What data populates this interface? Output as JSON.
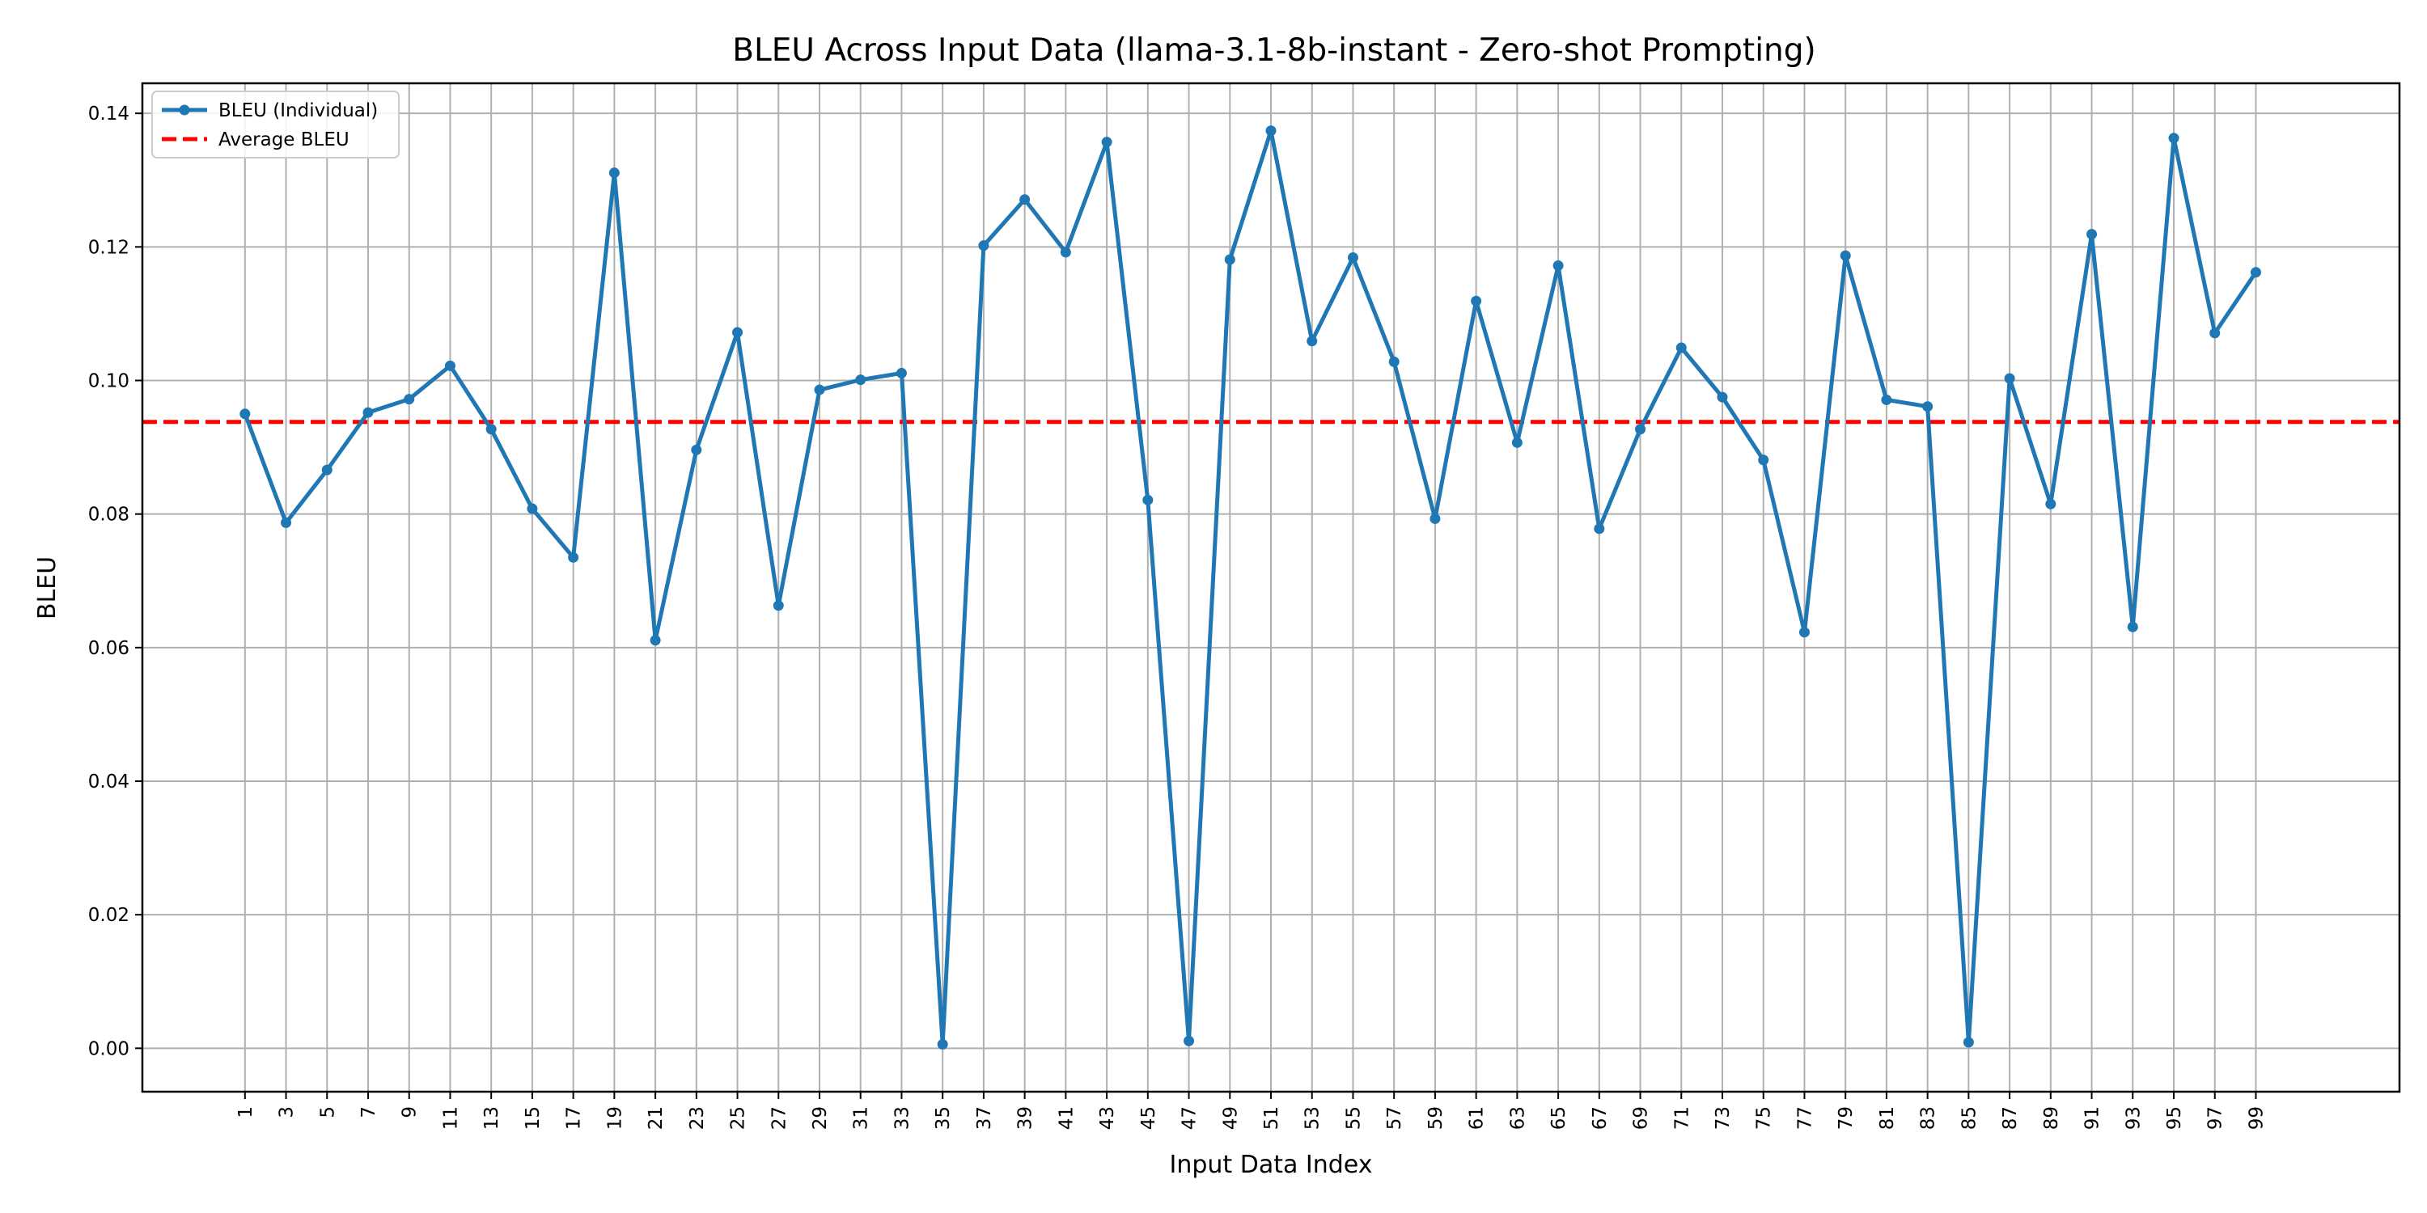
{
  "chart_data": {
    "type": "line",
    "title": "BLEU Across Input Data (llama-3.1-8b-instant - Zero-shot Prompting)",
    "xlabel": "Input Data Index",
    "ylabel": "BLEU",
    "ylim": [
      -0.0065,
      0.1445
    ],
    "xlim": [
      -4,
      106
    ],
    "yticks": [
      0.0,
      0.02,
      0.04,
      0.06,
      0.08,
      0.1,
      0.12,
      0.14
    ],
    "ytick_labels": [
      "0.00",
      "0.02",
      "0.04",
      "0.06",
      "0.08",
      "0.10",
      "0.12",
      "0.14"
    ],
    "xticks": [
      1,
      3,
      5,
      7,
      9,
      11,
      13,
      15,
      17,
      19,
      21,
      23,
      25,
      27,
      29,
      31,
      33,
      35,
      37,
      39,
      41,
      43,
      45,
      47,
      49,
      51,
      53,
      55,
      57,
      59,
      61,
      63,
      65,
      67,
      69,
      71,
      73,
      75,
      77,
      79,
      81,
      83,
      85,
      87,
      89,
      91,
      93,
      95,
      97,
      99
    ],
    "xtick_labels": [
      "1",
      "3",
      "5",
      "7",
      "9",
      "11",
      "13",
      "15",
      "17",
      "19",
      "21",
      "23",
      "25",
      "27",
      "29",
      "31",
      "33",
      "35",
      "37",
      "39",
      "41",
      "43",
      "45",
      "47",
      "49",
      "51",
      "53",
      "55",
      "57",
      "59",
      "61",
      "63",
      "65",
      "67",
      "69",
      "71",
      "73",
      "75",
      "77",
      "79",
      "81",
      "83",
      "85",
      "87",
      "89",
      "91",
      "93",
      "95",
      "97",
      "99"
    ],
    "grid": true,
    "legend_position": "top-left",
    "series": [
      {
        "name": "BLEU (Individual)",
        "color": "#1f77b4",
        "style": "solid-with-markers",
        "x": [
          1,
          3,
          5,
          7,
          9,
          11,
          13,
          15,
          17,
          19,
          21,
          23,
          25,
          27,
          29,
          31,
          33,
          35,
          37,
          39,
          41,
          43,
          45,
          47,
          49,
          51,
          53,
          55,
          57,
          59,
          61,
          63,
          65,
          67,
          69,
          71,
          73,
          75,
          77,
          79,
          81,
          83,
          85,
          87,
          89,
          91,
          93,
          95,
          97,
          99
        ],
        "y": [
          0.095,
          0.0787,
          0.0866,
          0.0952,
          0.0972,
          0.1022,
          0.0927,
          0.0808,
          0.0735,
          0.1311,
          0.0611,
          0.0896,
          0.1072,
          0.0663,
          0.0986,
          0.1001,
          0.1011,
          0.0006,
          0.1202,
          0.1271,
          0.1192,
          0.1357,
          0.0821,
          0.0011,
          0.1181,
          0.1374,
          0.1059,
          0.1184,
          0.1028,
          0.0793,
          0.1119,
          0.0907,
          0.1172,
          0.0778,
          0.0927,
          0.1049,
          0.0975,
          0.0881,
          0.0623,
          0.1187,
          0.0971,
          0.0961,
          0.0009,
          0.1003,
          0.0815,
          0.1219,
          0.0631,
          0.1363,
          0.1071,
          0.1162
        ]
      },
      {
        "name": "Average BLEU",
        "color": "#ff0000",
        "style": "dashed",
        "value": 0.0938
      }
    ]
  }
}
